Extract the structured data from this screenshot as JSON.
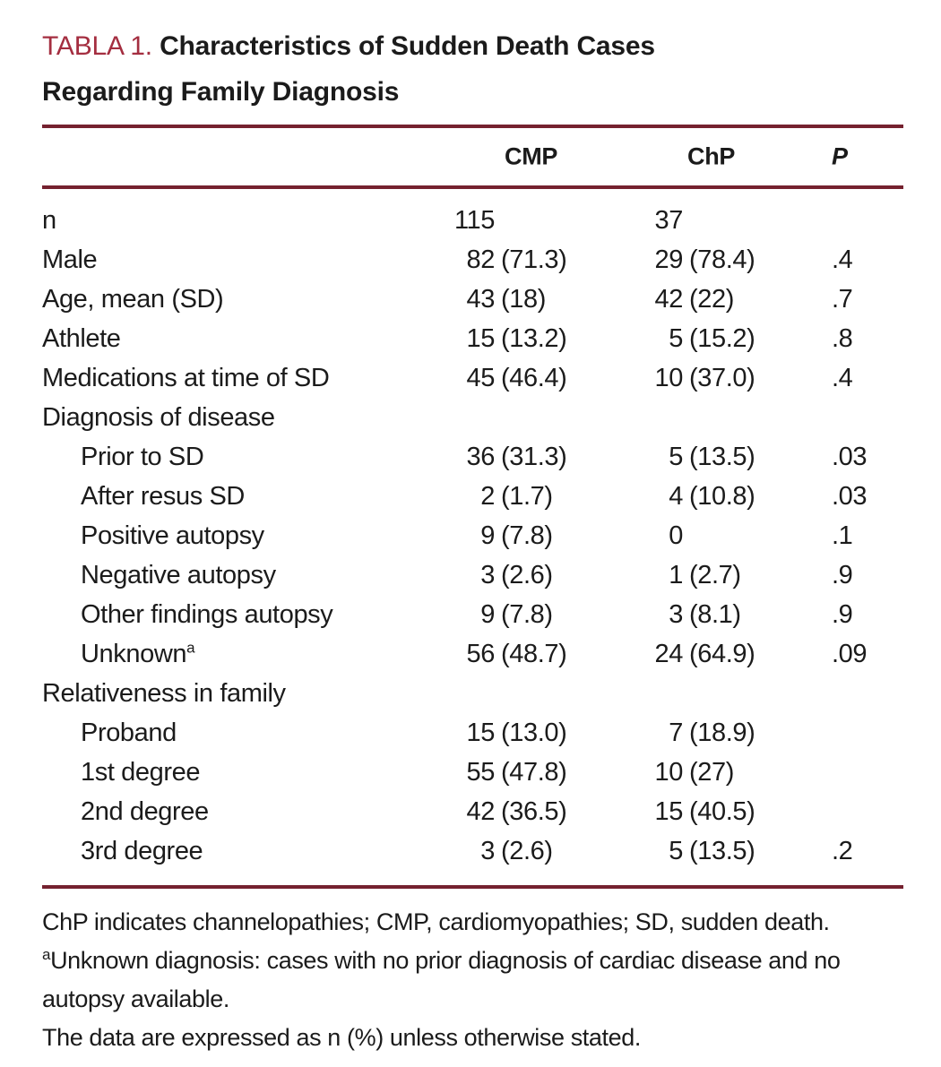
{
  "colors": {
    "accent_red": "#A42E40",
    "rule": "#75212F",
    "text": "#1B1B1B"
  },
  "title": {
    "prefix": "TABLA 1.",
    "line1": "Characteristics of Sudden Death Cases",
    "line2": "Regarding Family Diagnosis"
  },
  "table": {
    "header": {
      "cmp": "CMP",
      "chp": "ChP",
      "p": "P"
    },
    "rows": [
      {
        "label": "n",
        "cmp_n": "115",
        "cmp_pct": "",
        "chp_n": "37",
        "chp_pct": "",
        "p": ""
      },
      {
        "label": "Male",
        "cmp_n": "82",
        "cmp_pct": "(71.3)",
        "chp_n": "29",
        "chp_pct": "(78.4)",
        "p": ".4"
      },
      {
        "label": "Age, mean (SD)",
        "cmp_n": "43",
        "cmp_pct": "(18)",
        "chp_n": "42",
        "chp_pct": "(22)",
        "p": ".7"
      },
      {
        "label": "Athlete",
        "cmp_n": "15",
        "cmp_pct": "(13.2)",
        "chp_n": "5",
        "chp_pct": "(15.2)",
        "p": ".8"
      },
      {
        "label": "Medications at time of SD",
        "cmp_n": "45",
        "cmp_pct": "(46.4)",
        "chp_n": "10",
        "chp_pct": "(37.0)",
        "p": ".4"
      },
      {
        "label": "Diagnosis of disease",
        "cmp_n": "",
        "cmp_pct": "",
        "chp_n": "",
        "chp_pct": "",
        "p": ""
      },
      {
        "label": "Prior to SD",
        "cmp_n": "36",
        "cmp_pct": "(31.3)",
        "chp_n": "5",
        "chp_pct": "(13.5)",
        "p": ".03"
      },
      {
        "label": "After resus SD",
        "cmp_n": "2",
        "cmp_pct": "(1.7)",
        "chp_n": "4",
        "chp_pct": "(10.8)",
        "p": ".03"
      },
      {
        "label": "Positive autopsy",
        "cmp_n": "9",
        "cmp_pct": "(7.8)",
        "chp_n": "0",
        "chp_pct": "",
        "p": ".1"
      },
      {
        "label": "Negative autopsy",
        "cmp_n": "3",
        "cmp_pct": "(2.6)",
        "chp_n": "1",
        "chp_pct": "(2.7)",
        "p": ".9"
      },
      {
        "label": "Other findings autopsy",
        "cmp_n": "9",
        "cmp_pct": "(7.8)",
        "chp_n": "3",
        "chp_pct": "(8.1)",
        "p": ".9"
      },
      {
        "label": "Unknown",
        "sup": "a",
        "cmp_n": "56",
        "cmp_pct": "(48.7)",
        "chp_n": "24",
        "chp_pct": "(64.9)",
        "p": ".09"
      },
      {
        "label": "Relativeness in family",
        "cmp_n": "",
        "cmp_pct": "",
        "chp_n": "",
        "chp_pct": "",
        "p": ""
      },
      {
        "label": "Proband",
        "cmp_n": "15",
        "cmp_pct": "(13.0)",
        "chp_n": "7",
        "chp_pct": "(18.9)",
        "p": ""
      },
      {
        "label": "1st degree",
        "cmp_n": "55",
        "cmp_pct": "(47.8)",
        "chp_n": "10",
        "chp_pct": "(27)",
        "p": ""
      },
      {
        "label": "2nd degree",
        "cmp_n": "42",
        "cmp_pct": "(36.5)",
        "chp_n": "15",
        "chp_pct": "(40.5)",
        "p": ""
      },
      {
        "label": "3rd degree",
        "cmp_n": "3",
        "cmp_pct": "(2.6)",
        "chp_n": "5",
        "chp_pct": "(13.5)",
        "p": ".2"
      }
    ]
  },
  "footnotes": {
    "abbrev": "ChP indicates channelopathies; CMP, cardiomyopathies; SD, sudden death.",
    "note_a_sup": "a",
    "note_a": "Unknown diagnosis: cases with no prior diagnosis of cardiac disease and no autopsy available.",
    "data_note": "The data are expressed as n (%) unless otherwise stated."
  }
}
